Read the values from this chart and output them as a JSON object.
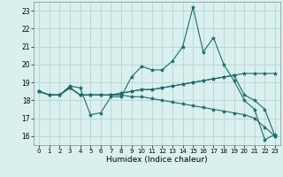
{
  "xlabel": "Humidex (Indice chaleur)",
  "background_color": "#daf0ee",
  "grid_color": "#b8d8d5",
  "line_color": "#1a6b6b",
  "xlim": [
    -0.5,
    23.5
  ],
  "ylim": [
    15.5,
    23.5
  ],
  "yticks": [
    16,
    17,
    18,
    19,
    20,
    21,
    22,
    23
  ],
  "xticks": [
    0,
    1,
    2,
    3,
    4,
    5,
    6,
    7,
    8,
    9,
    10,
    11,
    12,
    13,
    14,
    15,
    16,
    17,
    18,
    19,
    20,
    21,
    22,
    23
  ],
  "series": [
    [
      18.5,
      18.3,
      18.3,
      18.8,
      18.7,
      17.2,
      17.3,
      18.2,
      18.2,
      19.3,
      19.9,
      19.7,
      19.7,
      20.2,
      21.0,
      23.2,
      20.7,
      21.5,
      20.0,
      19.1,
      18.0,
      17.5,
      15.8,
      16.1
    ],
    [
      18.5,
      18.3,
      18.3,
      18.7,
      18.3,
      18.3,
      18.3,
      18.3,
      18.4,
      18.5,
      18.6,
      18.6,
      18.7,
      18.8,
      18.9,
      19.0,
      19.1,
      19.2,
      19.3,
      19.4,
      19.5,
      19.5,
      19.5,
      19.5
    ],
    [
      18.5,
      18.3,
      18.3,
      18.7,
      18.3,
      18.3,
      18.3,
      18.3,
      18.4,
      18.5,
      18.6,
      18.6,
      18.7,
      18.8,
      18.9,
      19.0,
      19.1,
      19.2,
      19.3,
      19.4,
      18.3,
      18.0,
      17.5,
      16.0
    ],
    [
      18.5,
      18.3,
      18.3,
      18.7,
      18.3,
      18.3,
      18.3,
      18.3,
      18.3,
      18.2,
      18.2,
      18.1,
      18.0,
      17.9,
      17.8,
      17.7,
      17.6,
      17.5,
      17.4,
      17.3,
      17.2,
      17.0,
      16.5,
      16.0
    ]
  ]
}
